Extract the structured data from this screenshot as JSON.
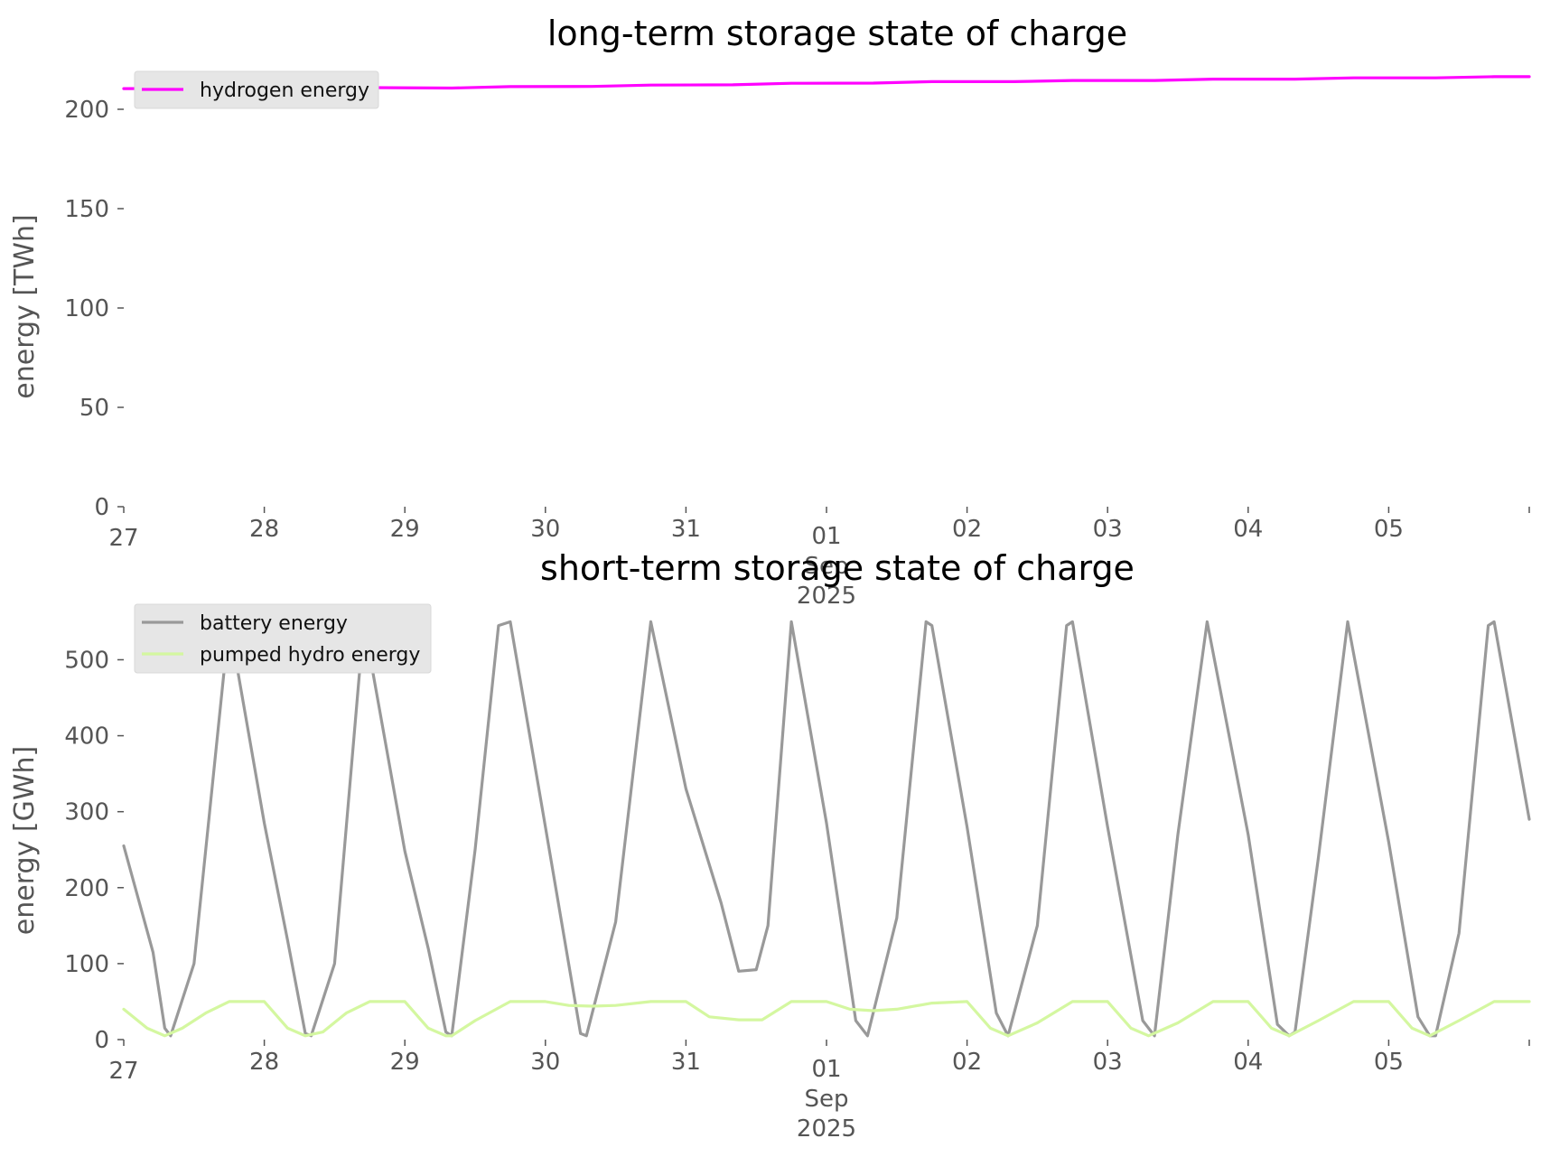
{
  "chart_data": [
    {
      "type": "line",
      "title": "long-term storage state of charge",
      "ylabel": "energy [TWh]",
      "xlabel": "",
      "xlim": [
        "2025-08-27T00:00",
        "2025-09-06T00:00"
      ],
      "ylim": [
        0,
        215
      ],
      "yticks": [
        0,
        50,
        100,
        150,
        200
      ],
      "xtick_labels": [
        "27",
        "28",
        "29",
        "30",
        "31",
        "01\nSep\n2025",
        "02",
        "03",
        "04",
        "05"
      ],
      "legend_position": "top-left",
      "grid": false,
      "series": [
        {
          "name": "hydrogen energy",
          "color": "#ff00ff",
          "x": [
            "2025-08-27T00:00",
            "2025-08-28T00:00",
            "2025-08-28T18:00",
            "2025-08-29T08:00",
            "2025-08-29T18:00",
            "2025-08-30T08:00",
            "2025-08-30T18:00",
            "2025-08-31T08:00",
            "2025-08-31T18:00",
            "2025-09-01T08:00",
            "2025-09-01T18:00",
            "2025-09-02T08:00",
            "2025-09-02T18:00",
            "2025-09-03T08:00",
            "2025-09-03T18:00",
            "2025-09-04T08:00",
            "2025-09-04T18:00",
            "2025-09-05T08:00",
            "2025-09-05T18:00",
            "2025-09-06T00:00"
          ],
          "values": [
            210.4,
            210.6,
            210.9,
            210.7,
            211.4,
            211.5,
            212.2,
            212.3,
            213.1,
            213.2,
            213.9,
            213.9,
            214.5,
            214.5,
            215.2,
            215.2,
            215.8,
            215.8,
            216.4,
            216.4
          ]
        }
      ]
    },
    {
      "type": "line",
      "title": "short-term storage state of charge",
      "ylabel": "energy [GWh]",
      "xlabel": "",
      "xlim": [
        "2025-08-27T00:00",
        "2025-09-06T00:00"
      ],
      "ylim": [
        0,
        560
      ],
      "yticks": [
        0,
        100,
        200,
        300,
        400,
        500
      ],
      "xtick_labels": [
        "27",
        "28",
        "29",
        "30",
        "31",
        "01\nSep\n2025",
        "02",
        "03",
        "04",
        "05"
      ],
      "legend_position": "top-left",
      "grid": false,
      "series": [
        {
          "name": "battery energy",
          "color": "#999999",
          "x": [
            "2025-08-27T00:00",
            "2025-08-27T05:00",
            "2025-08-27T07:00",
            "2025-08-27T08:00",
            "2025-08-27T12:00",
            "2025-08-27T18:00",
            "2025-08-28T00:00",
            "2025-08-28T04:00",
            "2025-08-28T07:00",
            "2025-08-28T08:00",
            "2025-08-28T12:00",
            "2025-08-28T17:00",
            "2025-08-29T00:00",
            "2025-08-29T04:00",
            "2025-08-29T07:00",
            "2025-08-29T08:00",
            "2025-08-29T12:00",
            "2025-08-29T16:00",
            "2025-08-29T18:00",
            "2025-08-30T00:00",
            "2025-08-30T06:00",
            "2025-08-30T07:00",
            "2025-08-30T12:00",
            "2025-08-30T18:00",
            "2025-08-31T00:00",
            "2025-08-31T06:00",
            "2025-08-31T09:00",
            "2025-08-31T12:00",
            "2025-08-31T14:00",
            "2025-08-31T18:00",
            "2025-09-01T00:00",
            "2025-09-01T05:00",
            "2025-09-01T07:00",
            "2025-09-01T12:00",
            "2025-09-01T17:00",
            "2025-09-01T18:00",
            "2025-09-02T00:00",
            "2025-09-02T05:00",
            "2025-09-02T07:00",
            "2025-09-02T12:00",
            "2025-09-02T17:00",
            "2025-09-02T18:00",
            "2025-09-03T00:00",
            "2025-09-03T06:00",
            "2025-09-03T08:00",
            "2025-09-03T12:00",
            "2025-09-03T17:00",
            "2025-09-04T00:00",
            "2025-09-04T05:00",
            "2025-09-04T07:00",
            "2025-09-04T08:00",
            "2025-09-04T12:00",
            "2025-09-04T17:00",
            "2025-09-05T00:00",
            "2025-09-05T05:00",
            "2025-09-05T07:00",
            "2025-09-05T08:00",
            "2025-09-05T12:00",
            "2025-09-05T17:00",
            "2025-09-05T18:00",
            "2025-09-06T00:00"
          ],
          "values": [
            255,
            115,
            15,
            5,
            100,
            550,
            285,
            130,
            8,
            5,
            100,
            550,
            248,
            120,
            10,
            5,
            250,
            545,
            550,
            280,
            8,
            5,
            155,
            550,
            330,
            180,
            90,
            92,
            150,
            550,
            285,
            25,
            5,
            160,
            550,
            545,
            280,
            35,
            5,
            150,
            545,
            550,
            280,
            25,
            5,
            270,
            550,
            270,
            20,
            5,
            10,
            240,
            550,
            260,
            30,
            5,
            5,
            140,
            545,
            550,
            290
          ]
        },
        {
          "name": "pumped hydro energy",
          "color": "#d4f7a0",
          "x": [
            "2025-08-27T00:00",
            "2025-08-27T04:00",
            "2025-08-27T07:00",
            "2025-08-27T10:00",
            "2025-08-27T14:00",
            "2025-08-27T18:00",
            "2025-08-28T00:00",
            "2025-08-28T04:00",
            "2025-08-28T07:00",
            "2025-08-28T10:00",
            "2025-08-28T14:00",
            "2025-08-28T18:00",
            "2025-08-29T00:00",
            "2025-08-29T04:00",
            "2025-08-29T07:00",
            "2025-08-29T08:00",
            "2025-08-29T12:00",
            "2025-08-29T18:00",
            "2025-08-30T00:00",
            "2025-08-30T04:00",
            "2025-08-30T08:00",
            "2025-08-30T12:00",
            "2025-08-30T18:00",
            "2025-08-31T00:00",
            "2025-08-31T04:00",
            "2025-08-31T09:00",
            "2025-08-31T13:00",
            "2025-08-31T18:00",
            "2025-09-01T00:00",
            "2025-09-01T04:00",
            "2025-09-01T08:00",
            "2025-09-01T12:00",
            "2025-09-01T18:00",
            "2025-09-02T00:00",
            "2025-09-02T04:00",
            "2025-09-02T07:00",
            "2025-09-02T12:00",
            "2025-09-02T18:00",
            "2025-09-03T00:00",
            "2025-09-03T04:00",
            "2025-09-03T07:00",
            "2025-09-03T12:00",
            "2025-09-03T18:00",
            "2025-09-04T00:00",
            "2025-09-04T04:00",
            "2025-09-04T07:00",
            "2025-09-04T12:00",
            "2025-09-04T18:00",
            "2025-09-05T00:00",
            "2025-09-05T04:00",
            "2025-09-05T07:00",
            "2025-09-05T12:00",
            "2025-09-05T18:00",
            "2025-09-06T00:00"
          ],
          "values": [
            40,
            15,
            5,
            15,
            35,
            50,
            50,
            15,
            5,
            10,
            35,
            50,
            50,
            15,
            5,
            5,
            25,
            50,
            50,
            45,
            44,
            45,
            50,
            50,
            30,
            26,
            26,
            50,
            50,
            40,
            38,
            40,
            48,
            50,
            15,
            5,
            22,
            50,
            50,
            15,
            5,
            22,
            50,
            50,
            15,
            5,
            25,
            50,
            50,
            15,
            5,
            25,
            50,
            50
          ]
        }
      ]
    }
  ]
}
